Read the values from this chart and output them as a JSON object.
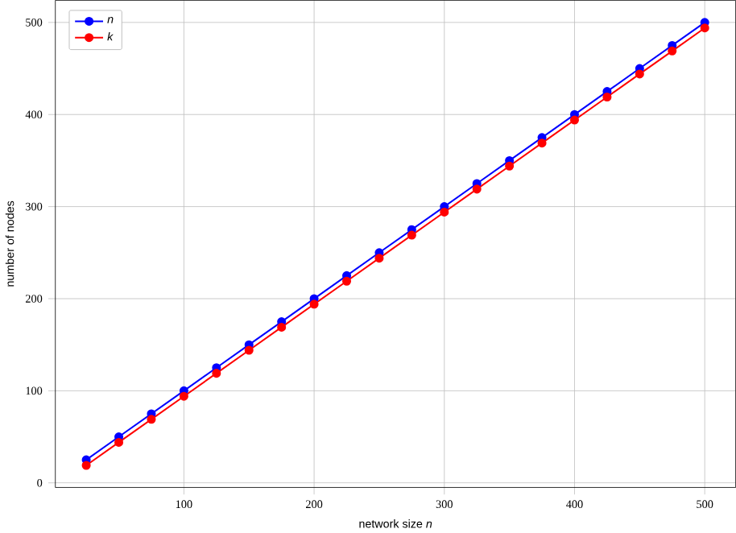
{
  "chart_data": {
    "type": "line",
    "xlabel": "network size *n*",
    "ylabel": "number of nodes",
    "x": [
      25,
      50,
      75,
      100,
      125,
      150,
      175,
      200,
      225,
      250,
      275,
      300,
      325,
      350,
      375,
      400,
      425,
      450,
      475,
      500
    ],
    "series": [
      {
        "name": "n",
        "color": "#0000ff",
        "values": [
          25,
          50,
          75,
          100,
          125,
          150,
          175,
          200,
          225,
          250,
          275,
          300,
          325,
          350,
          375,
          400,
          425,
          450,
          475,
          500
        ]
      },
      {
        "name": "k",
        "color": "#ff0000",
        "values": [
          19,
          44,
          69,
          94,
          119,
          144,
          169,
          194,
          219,
          244,
          269,
          294,
          319,
          344,
          369,
          394,
          419,
          444,
          469,
          494
        ]
      }
    ],
    "xlim": [
      1.25,
      523.75
    ],
    "ylim": [
      -5,
      524
    ],
    "xticks": [
      100,
      200,
      300,
      400,
      500
    ],
    "yticks": [
      0,
      100,
      200,
      300,
      400,
      500
    ],
    "grid": true,
    "legend": "top left",
    "marker": "circle",
    "line_style": "solid"
  }
}
